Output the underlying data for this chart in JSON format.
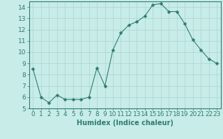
{
  "x": [
    0,
    1,
    2,
    3,
    4,
    5,
    6,
    7,
    8,
    9,
    10,
    11,
    12,
    13,
    14,
    15,
    16,
    17,
    18,
    19,
    20,
    21,
    22,
    23
  ],
  "y": [
    8.5,
    6.0,
    5.5,
    6.2,
    5.8,
    5.8,
    5.8,
    6.0,
    8.6,
    7.0,
    10.2,
    11.7,
    12.4,
    12.7,
    13.2,
    14.2,
    14.3,
    13.6,
    13.6,
    12.5,
    11.1,
    10.2,
    9.4,
    9.0
  ],
  "line_color": "#2e7d6e",
  "marker": "D",
  "marker_size": 2.5,
  "bg_color": "#c8ece8",
  "grid_color": "#b0d8d4",
  "xlabel": "Humidex (Indice chaleur)",
  "ylim": [
    5,
    14.5
  ],
  "xlim": [
    -0.5,
    23.5
  ],
  "yticks": [
    5,
    6,
    7,
    8,
    9,
    10,
    11,
    12,
    13,
    14
  ],
  "xticks": [
    0,
    1,
    2,
    3,
    4,
    5,
    6,
    7,
    8,
    9,
    10,
    11,
    12,
    13,
    14,
    15,
    16,
    17,
    18,
    19,
    20,
    21,
    22,
    23
  ],
  "tick_color": "#2e7d6e",
  "label_color": "#2e7d6e",
  "xlabel_fontsize": 7,
  "tick_fontsize": 6.5
}
